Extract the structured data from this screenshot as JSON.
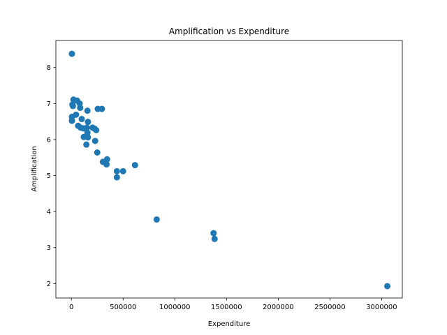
{
  "chart_data": {
    "type": "scatter",
    "title": "Amplification vs Expenditure",
    "xlabel": "Expenditure",
    "ylabel": "Amplification",
    "xlim": [
      -150000,
      3200000
    ],
    "ylim": [
      1.6,
      8.75
    ],
    "x_ticks": [
      0,
      500000,
      1000000,
      1500000,
      2000000,
      2500000,
      3000000
    ],
    "x_tick_labels": [
      "0",
      "500000",
      "1000000",
      "1500000",
      "2000000",
      "2500000",
      "3000000"
    ],
    "y_ticks": [
      2,
      3,
      4,
      5,
      6,
      7,
      8
    ],
    "y_tick_labels": [
      "2",
      "3",
      "4",
      "5",
      "6",
      "7",
      "8"
    ],
    "grid": false,
    "marker_color": "#1f77b4",
    "points": [
      {
        "x": 5000,
        "y": 8.38
      },
      {
        "x": 20000,
        "y": 7.11
      },
      {
        "x": 55000,
        "y": 7.08
      },
      {
        "x": 80000,
        "y": 7.0
      },
      {
        "x": 10000,
        "y": 6.97
      },
      {
        "x": 15000,
        "y": 6.93
      },
      {
        "x": 85000,
        "y": 6.88
      },
      {
        "x": 255000,
        "y": 6.85
      },
      {
        "x": 295000,
        "y": 6.85
      },
      {
        "x": 155000,
        "y": 6.8
      },
      {
        "x": 45000,
        "y": 6.69
      },
      {
        "x": 5000,
        "y": 6.63
      },
      {
        "x": 100000,
        "y": 6.57
      },
      {
        "x": 5000,
        "y": 6.52
      },
      {
        "x": 160000,
        "y": 6.49
      },
      {
        "x": 65000,
        "y": 6.38
      },
      {
        "x": 90000,
        "y": 6.33
      },
      {
        "x": 115000,
        "y": 6.31
      },
      {
        "x": 150000,
        "y": 6.33
      },
      {
        "x": 205000,
        "y": 6.33
      },
      {
        "x": 225000,
        "y": 6.3
      },
      {
        "x": 240000,
        "y": 6.26
      },
      {
        "x": 155000,
        "y": 6.19
      },
      {
        "x": 120000,
        "y": 6.07
      },
      {
        "x": 160000,
        "y": 6.06
      },
      {
        "x": 230000,
        "y": 5.96
      },
      {
        "x": 145000,
        "y": 5.86
      },
      {
        "x": 250000,
        "y": 5.64
      },
      {
        "x": 345000,
        "y": 5.45
      },
      {
        "x": 305000,
        "y": 5.38
      },
      {
        "x": 340000,
        "y": 5.31
      },
      {
        "x": 615000,
        "y": 5.29
      },
      {
        "x": 440000,
        "y": 5.12
      },
      {
        "x": 500000,
        "y": 5.12
      },
      {
        "x": 440000,
        "y": 4.95
      },
      {
        "x": 825000,
        "y": 3.78
      },
      {
        "x": 1375000,
        "y": 3.4
      },
      {
        "x": 1385000,
        "y": 3.24
      },
      {
        "x": 3055000,
        "y": 1.93
      }
    ]
  }
}
